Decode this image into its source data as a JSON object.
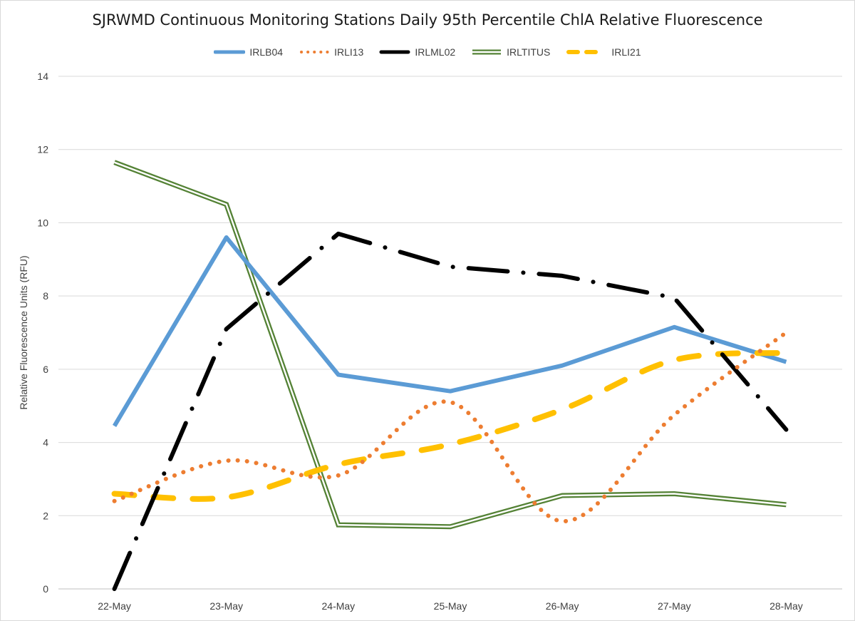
{
  "chart_data": {
    "type": "line",
    "title": "SJRWMD Continuous Monitoring Stations Daily 95th Percentile ChlA Relative Fluorescence",
    "xlabel": "",
    "ylabel": "Relative Fluorescence Units (RFU)",
    "categories": [
      "22-May",
      "23-May",
      "24-May",
      "25-May",
      "26-May",
      "27-May",
      "28-May"
    ],
    "ylim": [
      0,
      14
    ],
    "yticks": [
      0,
      2,
      4,
      6,
      8,
      10,
      12,
      14
    ],
    "grid": true,
    "legend_position": "top",
    "series": [
      {
        "name": "IRLB04",
        "values": [
          4.45,
          9.6,
          5.85,
          5.4,
          6.1,
          7.15,
          6.2
        ],
        "color": "#5b9bd5",
        "style": "solid",
        "smooth": false
      },
      {
        "name": "IRLI13",
        "values": [
          2.4,
          3.5,
          3.1,
          5.1,
          1.85,
          4.75,
          7.0
        ],
        "color": "#ed7d31",
        "style": "round-dot",
        "smooth": true
      },
      {
        "name": "IRLML02",
        "values": [
          0.0,
          7.1,
          9.7,
          8.8,
          8.55,
          7.95,
          4.35
        ],
        "color": "#000000",
        "style": "dash-dot",
        "smooth": false
      },
      {
        "name": "IRLTITUS",
        "values": [
          11.65,
          10.5,
          1.75,
          1.7,
          2.55,
          2.6,
          2.3
        ],
        "color": "#548235",
        "style": "double",
        "smooth": false
      },
      {
        "name": "IRLI21",
        "values": [
          2.6,
          2.5,
          3.4,
          3.95,
          4.9,
          6.25,
          6.45
        ],
        "color": "#ffc000",
        "style": "dash",
        "smooth": true
      }
    ]
  }
}
